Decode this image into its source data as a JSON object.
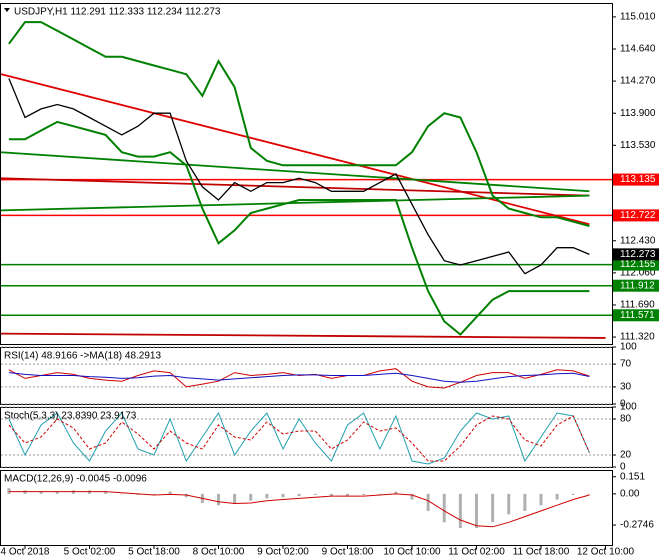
{
  "chart_data": [
    {
      "type": "line",
      "title": "USDJPY,H1  112.291 112.333 112.234 112.273",
      "categories": [
        null,
        "4 Oct 2018",
        null,
        null,
        null,
        "5 Oct 02:00",
        null,
        null,
        null,
        "5 Oct 18:00",
        null,
        null,
        null,
        "8 Oct 10:00",
        null,
        null,
        null,
        "9 Oct 02:00",
        null,
        null,
        null,
        "9 Oct 18:00",
        null,
        null,
        null,
        "10 Oct 10:00",
        null,
        null,
        null,
        "11 Oct 02:00",
        null,
        null,
        null,
        "11 Oct 18:00",
        null,
        null,
        null,
        "12 Oct 10:00"
      ],
      "ylim": [
        111.24,
        115.17
      ],
      "yticks": [
        {
          "value": 115.01,
          "label": "115.010"
        },
        {
          "value": 114.64,
          "label": "114.640"
        },
        {
          "value": 114.27,
          "label": "114.270"
        },
        {
          "value": 113.9,
          "label": "113.900"
        },
        {
          "value": 113.53,
          "label": "113.530"
        },
        {
          "value": 112.43,
          "label": "112.430"
        },
        {
          "value": 112.06,
          "label": "112.060"
        },
        {
          "value": 111.69,
          "label": "111.690"
        },
        {
          "value": 111.32,
          "label": "111.320"
        }
      ],
      "grid": false,
      "series": [
        {
          "type": "line",
          "color": "#000000",
          "width": 1.3,
          "values": [
            114.3,
            113.85,
            113.95,
            114.0,
            113.95,
            113.85,
            113.75,
            113.65,
            113.75,
            113.9,
            113.9,
            113.35,
            113.05,
            112.9,
            113.1,
            113.0,
            113.1,
            113.1,
            113.15,
            113.1,
            113.0,
            113.0,
            113.0,
            113.1,
            113.2,
            112.85,
            112.5,
            112.2,
            112.15,
            112.2,
            112.25,
            112.3,
            112.05,
            112.15,
            112.35,
            112.35,
            112.273,
            null
          ]
        },
        {
          "type": "line",
          "color": "#008000",
          "width": 2,
          "values": [
            114.7,
            114.95,
            114.95,
            114.85,
            114.75,
            114.65,
            114.55,
            114.55,
            114.5,
            114.45,
            114.4,
            114.35,
            114.1,
            114.5,
            114.2,
            113.5,
            113.35,
            113.3,
            113.3,
            113.3,
            113.3,
            113.3,
            113.3,
            113.3,
            113.3,
            113.45,
            113.75,
            113.9,
            113.85,
            113.45,
            112.95,
            112.8,
            112.75,
            112.7,
            112.7,
            112.65,
            112.6,
            null
          ]
        },
        {
          "type": "line",
          "color": "#008000",
          "width": 2,
          "values": [
            113.6,
            113.6,
            113.7,
            113.8,
            113.75,
            113.7,
            113.65,
            113.45,
            113.4,
            113.4,
            113.45,
            113.3,
            112.8,
            112.4,
            112.55,
            112.75,
            112.8,
            112.85,
            112.9,
            112.9,
            112.9,
            112.9,
            112.9,
            112.9,
            112.9,
            112.35,
            111.85,
            111.5,
            111.35,
            111.55,
            111.75,
            111.85,
            111.85,
            111.85,
            111.85,
            111.85,
            111.85,
            null
          ]
        }
      ],
      "trendlines": [
        {
          "from": [
            0,
            114.35
          ],
          "to": [
            36,
            112.62
          ],
          "color": "#e00000"
        },
        {
          "from": [
            0,
            113.15
          ],
          "to": [
            36,
            112.95
          ],
          "color": "#c00000"
        },
        {
          "from": [
            0,
            113.45
          ],
          "to": [
            36,
            113.0
          ],
          "color": "#008000"
        },
        {
          "from": [
            0,
            112.78
          ],
          "to": [
            36,
            112.95
          ],
          "color": "#008000"
        },
        {
          "from": [
            0,
            111.36
          ],
          "to": [
            37,
            111.31
          ],
          "color": "#c00000"
        }
      ],
      "levels": [
        {
          "value": 113.135,
          "color": "#ff0000"
        },
        {
          "value": 112.722,
          "color": "#ff0000"
        },
        {
          "value": 112.155,
          "color": "#008000"
        },
        {
          "value": 111.912,
          "color": "#008000"
        },
        {
          "value": 111.571,
          "color": "#008000"
        }
      ],
      "price_label_color": "#000000"
    },
    {
      "type": "line",
      "title": "RSI(14) 48.9166 ->MA(18) 48.2913",
      "ylim": [
        0,
        100
      ],
      "yticks": [
        100,
        70,
        30,
        0
      ],
      "grid": true,
      "series": [
        {
          "type": "line",
          "color": "#d00000",
          "width": 1,
          "values": [
            60,
            45,
            50,
            55,
            52,
            45,
            42,
            40,
            50,
            58,
            55,
            30,
            35,
            40,
            55,
            50,
            52,
            55,
            50,
            52,
            45,
            50,
            50,
            58,
            62,
            40,
            30,
            28,
            38,
            50,
            55,
            55,
            45,
            52,
            60,
            58,
            48.9166,
            null
          ]
        },
        {
          "type": "line",
          "color": "#1010c0",
          "width": 1,
          "values": [
            55,
            52,
            50,
            50,
            50,
            48,
            47,
            45,
            46,
            49,
            50,
            46,
            44,
            42,
            44,
            46,
            48,
            50,
            51,
            51,
            50,
            50,
            50,
            52,
            54,
            50,
            45,
            40,
            38,
            40,
            44,
            48,
            50,
            51,
            53,
            54,
            48.2913,
            null
          ]
        }
      ]
    },
    {
      "type": "line",
      "title": "Stoch(5,3,3) 23.8390 23.9173",
      "ylim": [
        0,
        100
      ],
      "yticks": [
        100,
        80,
        20,
        0
      ],
      "grid": true,
      "series": [
        {
          "type": "line",
          "color": "#20a0b0",
          "width": 1,
          "values": [
            80,
            20,
            70,
            90,
            40,
            10,
            60,
            90,
            30,
            20,
            80,
            10,
            50,
            90,
            20,
            60,
            90,
            30,
            80,
            40,
            10,
            70,
            90,
            30,
            85,
            10,
            5,
            15,
            60,
            90,
            80,
            85,
            10,
            50,
            90,
            85,
            23.839,
            null
          ]
        },
        {
          "type": "line",
          "color": "#d00000",
          "width": 1,
          "dash": true,
          "values": [
            70,
            40,
            50,
            80,
            65,
            30,
            40,
            75,
            55,
            30,
            60,
            40,
            30,
            70,
            50,
            45,
            75,
            55,
            60,
            60,
            30,
            45,
            75,
            60,
            65,
            40,
            10,
            10,
            35,
            70,
            85,
            80,
            45,
            35,
            70,
            85,
            23.9173,
            null
          ]
        }
      ]
    },
    {
      "type": "bar",
      "title": "MACD(12,26,9) -0.0045 -0.0096",
      "ylim": [
        -0.45,
        0.21
      ],
      "yticks": [
        0.151,
        {
          "value": 0,
          "label": "0.00"
        },
        -0.2746
      ],
      "grid": false,
      "series": [
        {
          "type": "bar",
          "color": "#b0b0b0",
          "values": [
            0.05,
            0.03,
            0.02,
            0.02,
            0.03,
            0.03,
            0.02,
            0.0,
            -0.01,
            0.0,
            0.02,
            -0.03,
            -0.08,
            -0.1,
            -0.08,
            -0.06,
            -0.04,
            -0.03,
            -0.02,
            -0.01,
            -0.02,
            -0.02,
            -0.01,
            0.0,
            0.02,
            -0.05,
            -0.15,
            -0.25,
            -0.3,
            -0.3,
            -0.25,
            -0.18,
            -0.15,
            -0.1,
            -0.05,
            -0.01,
            -0.0045,
            null
          ]
        },
        {
          "type": "line",
          "color": "#d00000",
          "width": 1,
          "values": [
            0.02,
            0.02,
            0.02,
            0.02,
            0.02,
            0.02,
            0.02,
            0.01,
            0.0,
            -0.01,
            -0.005,
            -0.01,
            -0.04,
            -0.07,
            -0.085,
            -0.08,
            -0.06,
            -0.05,
            -0.04,
            -0.03,
            -0.02,
            -0.02,
            -0.02,
            -0.01,
            0.0,
            -0.01,
            -0.06,
            -0.15,
            -0.23,
            -0.28,
            -0.29,
            -0.25,
            -0.2,
            -0.15,
            -0.1,
            -0.05,
            -0.0096,
            null
          ]
        }
      ]
    }
  ]
}
